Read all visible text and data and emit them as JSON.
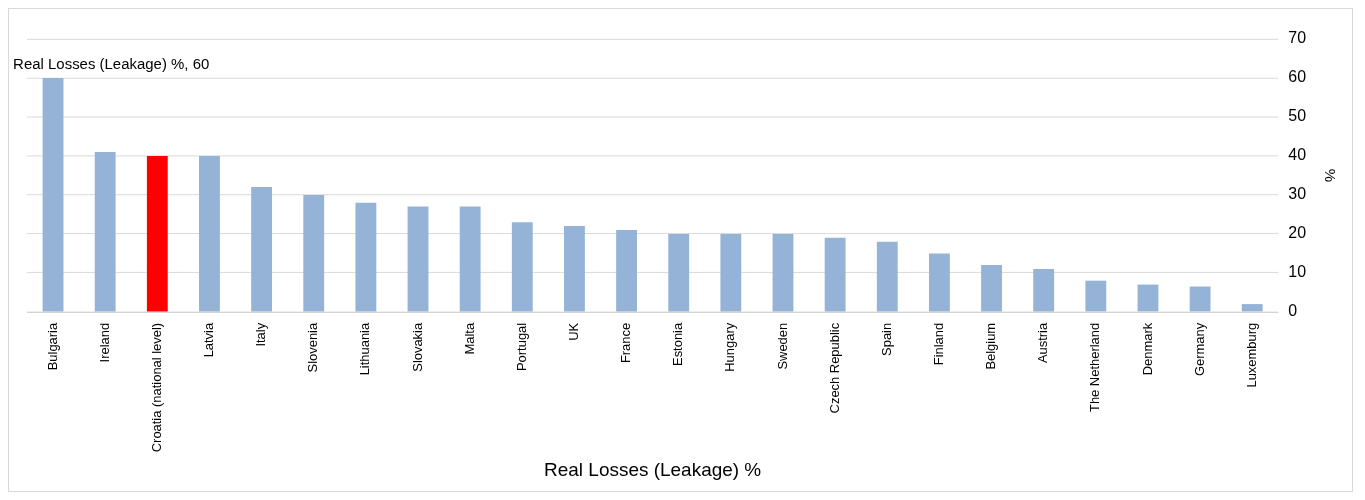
{
  "chart_data": {
    "type": "bar",
    "xlabel": "Real Losses (Leakage) %",
    "ylabel": "%",
    "categories": [
      "Bulgaria",
      "Ireland",
      "Croatia (national level)",
      "Latvia",
      "Italy",
      "Slovenia",
      "Lithuania",
      "Slovakia",
      "Malta",
      "Portugal",
      "UK",
      "France",
      "Estonia",
      "Hungary",
      "Sweden",
      "Czech Republic",
      "Spain",
      "Finland",
      "Belgium",
      "Austria",
      "The Netherland",
      "Denmark",
      "Germany",
      "Luxemburg"
    ],
    "values": [
      60,
      41,
      40,
      40,
      32,
      30,
      28,
      27,
      27,
      23,
      22,
      21,
      20,
      20,
      20,
      19,
      18,
      15,
      12,
      11,
      8,
      7,
      6.5,
      2
    ],
    "colors": [
      "#95b3d7",
      "#95b3d7",
      "#ff0000",
      "#95b3d7",
      "#95b3d7",
      "#95b3d7",
      "#95b3d7",
      "#95b3d7",
      "#95b3d7",
      "#95b3d7",
      "#95b3d7",
      "#95b3d7",
      "#95b3d7",
      "#95b3d7",
      "#95b3d7",
      "#95b3d7",
      "#95b3d7",
      "#95b3d7",
      "#95b3d7",
      "#95b3d7",
      "#95b3d7",
      "#95b3d7",
      "#95b3d7",
      "#95b3d7"
    ],
    "ylim": [
      0,
      70
    ],
    "yticks": [
      0,
      10,
      20,
      30,
      40,
      50,
      60,
      70
    ],
    "grid": "y",
    "legend": false,
    "annotations": [
      {
        "text": "Real Losses (Leakage) %, 60",
        "x": "Bulgaria",
        "y": 60
      }
    ]
  }
}
